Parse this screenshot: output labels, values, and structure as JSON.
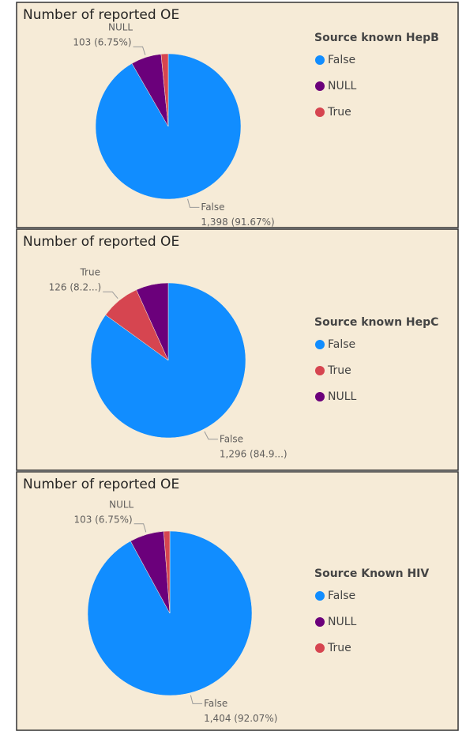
{
  "chart_data": [
    {
      "type": "pie",
      "title": "Number of reported OE",
      "legend_title": "Source known HepB",
      "categories": [
        "False",
        "NULL",
        "True"
      ],
      "values": [
        1398,
        103,
        24
      ],
      "value_labels": [
        "1,398 (91.67%)",
        "103 (6.75%)",
        null
      ],
      "colors": [
        "#118DFF",
        "#6B007B",
        "#D64550"
      ]
    },
    {
      "type": "pie",
      "title": "Number of reported OE",
      "legend_title": "Source known HepC",
      "categories": [
        "False",
        "True",
        "NULL"
      ],
      "values": [
        1296,
        126,
        103
      ],
      "value_labels": [
        "1,296 (84.9...)",
        "126 (8.2...)",
        null
      ],
      "colors": [
        "#118DFF",
        "#D64550",
        "#6B007B"
      ]
    },
    {
      "type": "pie",
      "title": "Number of reported OE",
      "legend_title": "Source Known HIV",
      "categories": [
        "False",
        "NULL",
        "True"
      ],
      "values": [
        1404,
        103,
        18
      ],
      "value_labels": [
        "1,404 (92.07%)",
        "103 (6.75%)",
        null
      ],
      "colors": [
        "#118DFF",
        "#6B007B",
        "#D64550"
      ]
    }
  ]
}
